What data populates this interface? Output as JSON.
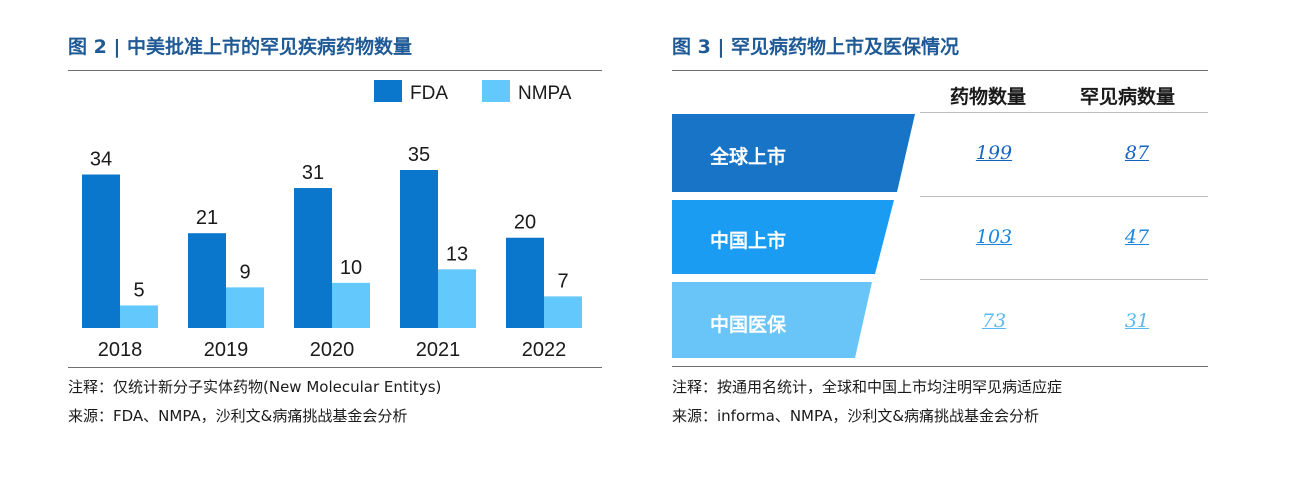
{
  "left": {
    "title": "图 2 | 中美批准上市的罕见疾病药物数量",
    "note": "注释：仅统计新分子实体药物(New Molecular Entitys)",
    "source": "来源：FDA、NMPA，沙利文&病痛挑战基金会分析"
  },
  "right": {
    "title": "图 3 | 罕见病药物上市及医保情况",
    "col_headers": [
      "药物数量",
      "罕见病数量"
    ],
    "rows": [
      {
        "label": "全球上市",
        "drugs": "199",
        "diseases": "87",
        "color": "#1874c6"
      },
      {
        "label": "中国上市",
        "drugs": "103",
        "diseases": "47",
        "color": "#1a9cf3"
      },
      {
        "label": "中国医保",
        "drugs": "73",
        "diseases": "31",
        "color": "#69c4f7"
      }
    ],
    "note": "注释：按通用名统计，全球和中国上市均注明罕见病适应症",
    "source": "来源：informa、NMPA，沙利文&病痛挑战基金会分析"
  },
  "chart_data": [
    {
      "type": "bar",
      "categories": [
        "2018",
        "2019",
        "2020",
        "2021",
        "2022"
      ],
      "series": [
        {
          "name": "FDA",
          "values": [
            34,
            21,
            31,
            35,
            20
          ],
          "color": "#0a77cc"
        },
        {
          "name": "NMPA",
          "values": [
            5,
            9,
            10,
            13,
            7
          ],
          "color": "#63c8fb"
        }
      ],
      "ylim": [
        0,
        40
      ],
      "legend": "top-right",
      "grid": false
    }
  ]
}
